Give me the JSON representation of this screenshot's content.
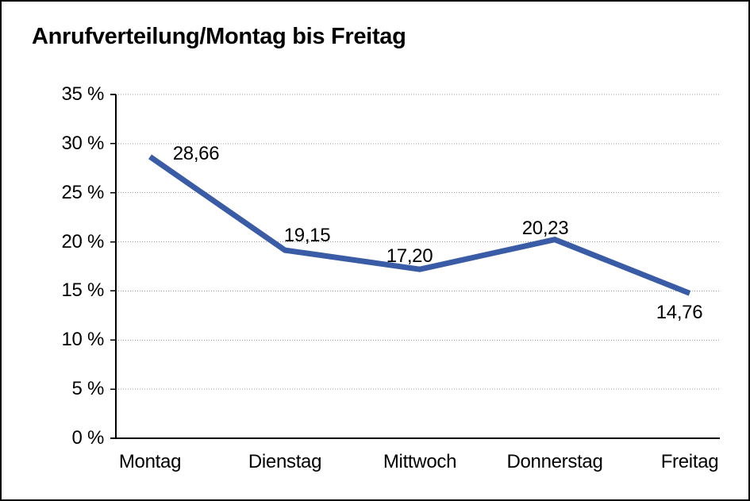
{
  "title": "Anrufverteilung/Montag bis Freitag",
  "chart_data": {
    "type": "line",
    "title": "Anrufverteilung/Montag bis Freitag",
    "categories": [
      "Montag",
      "Dienstag",
      "Mittwoch",
      "Donnerstag",
      "Freitag"
    ],
    "values": [
      28.66,
      19.15,
      17.2,
      20.23,
      14.76
    ],
    "value_labels": [
      "28,66",
      "19,15",
      "17,20",
      "20,23",
      "14,76"
    ],
    "xlabel": "",
    "ylabel": "",
    "ylim": [
      0,
      35
    ],
    "y_tick_step": 5,
    "y_tick_labels": [
      "0 %",
      "5 %",
      "10 %",
      "15 %",
      "20 %",
      "25 %",
      "30 %",
      "35 %"
    ],
    "grid": "horizontal-dotted",
    "legend": "none"
  },
  "colors": {
    "line": "#3A5BA5",
    "grid": "#999999",
    "axis": "#000000",
    "text": "#000000",
    "background": "#ffffff",
    "border": "#000000"
  }
}
